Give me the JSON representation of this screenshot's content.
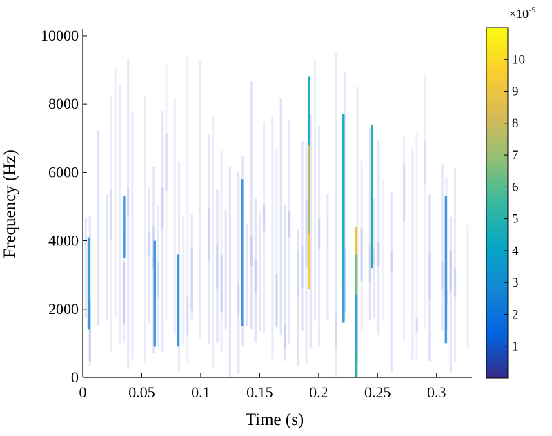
{
  "chart_data": {
    "type": "heatmap",
    "title": "",
    "xlabel": "Time (s)",
    "ylabel": "Frequency (Hz)",
    "xlim": [
      0,
      0.33
    ],
    "ylim": [
      0,
      10200
    ],
    "xticks": [
      0,
      0.05,
      0.1,
      0.15,
      0.2,
      0.25,
      0.3
    ],
    "xtick_labels": [
      "0",
      "0.05",
      "0.1",
      "0.15",
      "0.2",
      "0.25",
      "0.3"
    ],
    "yticks": [
      0,
      2000,
      4000,
      6000,
      8000,
      10000
    ],
    "ytick_labels": [
      "0",
      "2000",
      "4000",
      "6000",
      "8000",
      "10000"
    ],
    "colorbar": {
      "colormap": "parula",
      "range": [
        0,
        11
      ],
      "ticks": [
        1,
        2,
        3,
        4,
        5,
        6,
        7,
        8,
        9,
        10
      ],
      "tick_labels": [
        "1",
        "2",
        "3",
        "4",
        "5",
        "6",
        "7",
        "8",
        "9",
        "10"
      ],
      "exponent_label": "×10",
      "exponent_power": "-5"
    },
    "colors": [
      "#352a87",
      "#0363e1",
      "#1485d4",
      "#06a7c6",
      "#38b99e",
      "#92bf73",
      "#d9ba56",
      "#fcce2e",
      "#f9fb0e"
    ],
    "grid": false,
    "legend": "none",
    "strong_columns": [
      {
        "t": 0.005,
        "segments": [
          {
            "f0": 1400,
            "f1": 4100,
            "v": 2.6
          }
        ]
      },
      {
        "t": 0.035,
        "segments": [
          {
            "f0": 3500,
            "f1": 5300,
            "v": 2.2
          }
        ]
      },
      {
        "t": 0.061,
        "segments": [
          {
            "f0": 900,
            "f1": 4000,
            "v": 2.8
          }
        ]
      },
      {
        "t": 0.081,
        "segments": [
          {
            "f0": 900,
            "f1": 3600,
            "v": 2.4
          }
        ]
      },
      {
        "t": 0.135,
        "segments": [
          {
            "f0": 1500,
            "f1": 5800,
            "v": 2.2
          }
        ]
      },
      {
        "t": 0.192,
        "segments": [
          {
            "f0": 2600,
            "f1": 4200,
            "v": 9.5
          },
          {
            "f0": 4200,
            "f1": 6800,
            "v": 7.5
          },
          {
            "f0": 6800,
            "f1": 8800,
            "v": 4.5
          }
        ]
      },
      {
        "t": 0.221,
        "segments": [
          {
            "f0": 1600,
            "f1": 2800,
            "v": 3.0
          },
          {
            "f0": 2800,
            "f1": 7700,
            "v": 4.0
          }
        ]
      },
      {
        "t": 0.232,
        "segments": [
          {
            "f0": 0,
            "f1": 800,
            "v": 5.0
          },
          {
            "f0": 800,
            "f1": 2400,
            "v": 3.2
          },
          {
            "f0": 2400,
            "f1": 3600,
            "v": 6.5
          },
          {
            "f0": 3600,
            "f1": 4400,
            "v": 9.0
          }
        ]
      },
      {
        "t": 0.245,
        "segments": [
          {
            "f0": 3200,
            "f1": 7400,
            "v": 4.8
          }
        ]
      },
      {
        "t": 0.308,
        "segments": [
          {
            "f0": 1000,
            "f1": 5300,
            "v": 2.4
          }
        ]
      }
    ]
  }
}
